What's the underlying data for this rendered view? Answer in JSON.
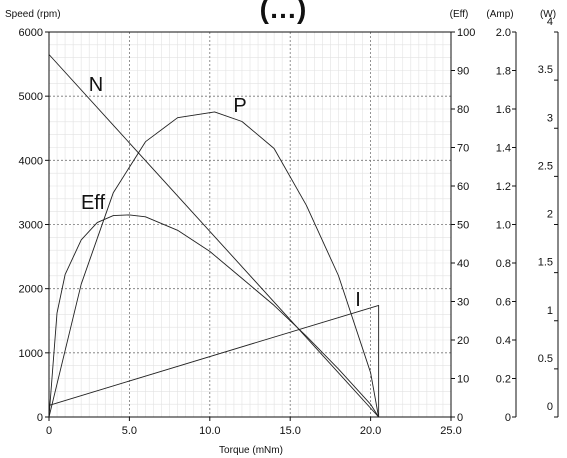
{
  "chart_data": {
    "type": "line",
    "title": "(…)",
    "xlabel": "Torque (mNm)",
    "ylabel": "Speed (rpm)",
    "x_ticks": [
      "0",
      "5.0",
      "10.0",
      "15.0",
      "20.0",
      "25.0"
    ],
    "xlim": [
      0,
      25
    ],
    "y_axes": [
      {
        "label": "Speed (rpm)",
        "range": [
          0,
          6000
        ],
        "ticks": [
          "0",
          "1000",
          "2000",
          "3000",
          "4000",
          "5000",
          "6000"
        ]
      },
      {
        "label": "(Eff)",
        "range": [
          0,
          100
        ],
        "ticks": [
          "0",
          "10",
          "20",
          "30",
          "40",
          "50",
          "60",
          "70",
          "80",
          "90",
          "100"
        ]
      },
      {
        "label": "(Amp)",
        "range": [
          0,
          2.0
        ],
        "ticks": [
          "0",
          "0.2",
          "0.4",
          "0.6",
          "0.8",
          "1.0",
          "1.2",
          "1.4",
          "1.6",
          "1.8",
          "2.0"
        ]
      },
      {
        "label": "(W)",
        "range": [
          0,
          4
        ],
        "ticks": [
          "0",
          "0.5",
          "1",
          "1.5",
          "2",
          "2.5",
          "3",
          "3.5",
          "4"
        ]
      }
    ],
    "grid": true,
    "series": [
      {
        "name": "N",
        "axis": "Speed (rpm)",
        "x": [
          0,
          20.5
        ],
        "y": [
          5650,
          0
        ]
      },
      {
        "name": "P",
        "axis": "(W)",
        "x": [
          0,
          2,
          4,
          6,
          8,
          10.3,
          12,
          14,
          16,
          18,
          20,
          20.5
        ],
        "y": [
          0,
          1.38,
          2.33,
          2.86,
          3.11,
          3.17,
          3.07,
          2.79,
          2.2,
          1.47,
          0.46,
          0
        ]
      },
      {
        "name": "Eff",
        "axis": "(Eff)",
        "x": [
          0,
          0.5,
          1,
          2,
          3,
          4,
          5,
          6,
          8,
          10,
          12,
          14,
          16,
          18,
          20,
          20.5
        ],
        "y": [
          0,
          27,
          37,
          46,
          50.5,
          52.3,
          52.5,
          52,
          48.5,
          43,
          36,
          29,
          21,
          12.5,
          3.3,
          0
        ]
      },
      {
        "name": "I",
        "axis": "(Amp)",
        "x": [
          0,
          20.5,
          20.5
        ],
        "y": [
          0.06,
          0.58,
          0
        ]
      }
    ],
    "curve_labels": [
      "N",
      "P",
      "Eff",
      "I"
    ]
  }
}
